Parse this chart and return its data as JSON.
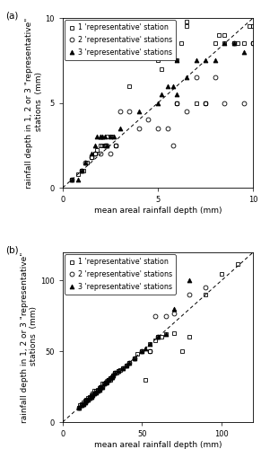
{
  "panel_a": {
    "xlim": [
      0,
      10
    ],
    "ylim": [
      0,
      10
    ],
    "xticks": [
      0,
      5,
      10
    ],
    "yticks": [
      0,
      5,
      10
    ],
    "xlabel": "mean areal rainfall depth (mm)",
    "ylabel": "rainfall depth in 1, 2 or 3 \"representative\"\n stations  (mm)",
    "label": "(a)",
    "sq_x": [
      0.5,
      0.8,
      1.0,
      1.1,
      1.3,
      1.5,
      1.7,
      1.8,
      2.0,
      2.1,
      2.2,
      2.3,
      2.5,
      2.6,
      2.8,
      3.5,
      5.0,
      5.2,
      5.5,
      5.5,
      5.8,
      6.0,
      6.0,
      6.2,
      6.5,
      6.5,
      7.0,
      7.5,
      8.0,
      8.2,
      8.5,
      8.5,
      9.0,
      9.0,
      9.2,
      9.5,
      9.8,
      10.0,
      10.0
    ],
    "sq_y": [
      0.5,
      0.8,
      1.0,
      1.0,
      1.5,
      1.8,
      2.0,
      2.2,
      2.5,
      2.5,
      2.5,
      3.0,
      3.0,
      3.0,
      2.5,
      6.0,
      7.5,
      7.0,
      8.0,
      8.5,
      8.0,
      5.0,
      7.5,
      8.5,
      9.5,
      9.8,
      5.0,
      5.0,
      8.5,
      9.0,
      8.5,
      9.0,
      8.5,
      8.5,
      8.5,
      8.5,
      9.5,
      8.5,
      9.5
    ],
    "ci_x": [
      0.5,
      1.0,
      1.2,
      1.5,
      1.7,
      2.0,
      2.2,
      2.3,
      2.5,
      2.8,
      3.0,
      3.5,
      4.0,
      4.5,
      5.0,
      5.5,
      5.8,
      6.0,
      6.5,
      7.0,
      7.5,
      8.0,
      8.5,
      9.0,
      9.5,
      10.0
    ],
    "ci_y": [
      0.5,
      1.0,
      1.5,
      1.8,
      2.0,
      2.0,
      2.5,
      2.5,
      2.0,
      2.5,
      4.5,
      4.5,
      3.5,
      4.0,
      3.5,
      3.5,
      2.5,
      5.0,
      4.5,
      6.5,
      5.0,
      6.5,
      5.0,
      8.5,
      5.0,
      8.5
    ],
    "tr_x": [
      0.5,
      0.8,
      1.0,
      1.2,
      1.5,
      1.7,
      1.8,
      2.0,
      2.0,
      2.1,
      2.2,
      2.3,
      2.5,
      2.7,
      3.0,
      4.0,
      5.0,
      5.2,
      5.5,
      5.8,
      6.0,
      6.0,
      6.5,
      7.0,
      7.5,
      8.0,
      8.5,
      9.0,
      9.5
    ],
    "tr_y": [
      0.5,
      0.5,
      1.0,
      1.5,
      2.0,
      2.5,
      3.0,
      3.0,
      3.0,
      3.0,
      3.0,
      2.5,
      3.0,
      3.0,
      3.5,
      4.5,
      5.0,
      5.5,
      6.0,
      6.0,
      5.5,
      7.5,
      6.5,
      7.5,
      7.5,
      7.5,
      8.5,
      8.5,
      8.0
    ]
  },
  "panel_b": {
    "xlim": [
      0,
      120
    ],
    "ylim": [
      0,
      120
    ],
    "xticks": [
      0,
      50,
      100
    ],
    "yticks": [
      0,
      50,
      100
    ],
    "xlabel": "mean areal rainfall depth (mm)",
    "ylabel": "rainfall depth in 1, 2 or 3 \"representative\"\n stations  (mm)",
    "label": "(b)",
    "sq_x": [
      10,
      11,
      12,
      13,
      14,
      15,
      15,
      16,
      17,
      18,
      19,
      20,
      20,
      21,
      22,
      23,
      24,
      25,
      25,
      26,
      27,
      28,
      29,
      30,
      30,
      31,
      32,
      33,
      34,
      35,
      36,
      38,
      40,
      42,
      45,
      47,
      50,
      52,
      55,
      55,
      58,
      60,
      62,
      65,
      70,
      75,
      80,
      90,
      100,
      110
    ],
    "sq_y": [
      10,
      12,
      13,
      14,
      15,
      15,
      16,
      17,
      18,
      19,
      20,
      20,
      22,
      22,
      23,
      24,
      25,
      25,
      27,
      27,
      28,
      28,
      30,
      30,
      31,
      32,
      33,
      35,
      35,
      36,
      37,
      38,
      40,
      42,
      45,
      48,
      50,
      30,
      50,
      55,
      58,
      60,
      60,
      62,
      63,
      50,
      60,
      90,
      105,
      112
    ],
    "ci_x": [
      10,
      12,
      13,
      14,
      15,
      16,
      17,
      18,
      19,
      20,
      21,
      22,
      23,
      24,
      25,
      26,
      27,
      28,
      29,
      30,
      31,
      32,
      33,
      35,
      38,
      40,
      42,
      45,
      50,
      55,
      58,
      60,
      65,
      70,
      80,
      90
    ],
    "ci_y": [
      10,
      12,
      13,
      14,
      15,
      16,
      17,
      18,
      19,
      20,
      21,
      22,
      23,
      25,
      25,
      27,
      28,
      29,
      30,
      31,
      32,
      33,
      35,
      36,
      38,
      40,
      42,
      45,
      50,
      50,
      75,
      60,
      75,
      77,
      90,
      95
    ],
    "tr_x": [
      10,
      12,
      13,
      14,
      15,
      16,
      17,
      18,
      19,
      20,
      21,
      22,
      23,
      24,
      25,
      26,
      27,
      28,
      29,
      30,
      31,
      32,
      33,
      35,
      38,
      40,
      42,
      45,
      50,
      52,
      55,
      60,
      65,
      70,
      80
    ],
    "tr_y": [
      10,
      12,
      13,
      14,
      15,
      16,
      17,
      18,
      19,
      20,
      21,
      22,
      23,
      25,
      25,
      27,
      28,
      29,
      30,
      31,
      32,
      33,
      35,
      36,
      38,
      40,
      42,
      45,
      50,
      52,
      55,
      60,
      62,
      80,
      100
    ]
  },
  "font_size": 6.5,
  "tick_font_size": 6.0,
  "legend_font_size": 5.8,
  "marker_size": 3.5,
  "marker_edge_width": 0.6,
  "line_width": 0.7
}
